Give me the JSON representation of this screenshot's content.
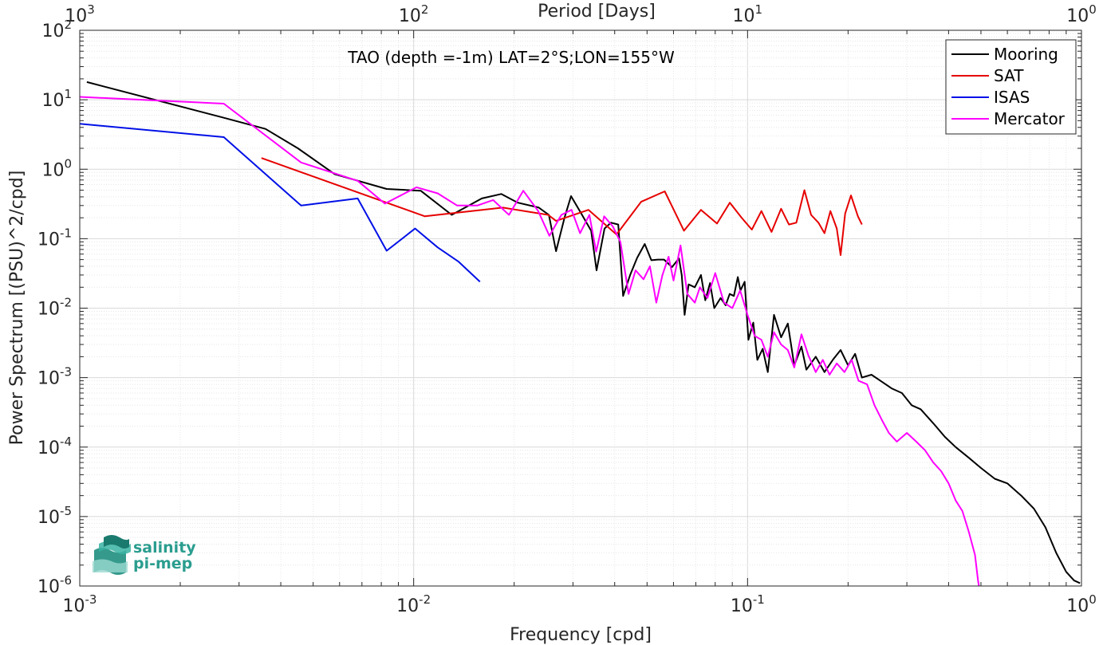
{
  "chart_data": {
    "type": "line",
    "title": "TAO (depth =-1m) LAT=2°S;LON=155°W",
    "xlabel": "Frequency [cpd]",
    "ylabel": "Power Spectrum [(PSU)^2/cpd]",
    "top_xlabel": "Period [Days]",
    "xscale": "log",
    "yscale": "log",
    "xlim": [
      0.001,
      1
    ],
    "ylim": [
      1e-06,
      100
    ],
    "grid": true,
    "legend": "top-right",
    "x_ticks": [
      {
        "base": "10",
        "exp": "-3"
      },
      {
        "base": "10",
        "exp": "-2"
      },
      {
        "base": "10",
        "exp": "-1"
      },
      {
        "base": "10",
        "exp": "0"
      }
    ],
    "top_ticks": [
      {
        "base": "10",
        "exp": "3"
      },
      {
        "base": "10",
        "exp": "2"
      },
      {
        "base": "10",
        "exp": "1"
      },
      {
        "base": "10",
        "exp": "0"
      }
    ],
    "y_ticks": [
      {
        "base": "10",
        "exp": "2"
      },
      {
        "base": "10",
        "exp": "1"
      },
      {
        "base": "10",
        "exp": "0"
      },
      {
        "base": "10",
        "exp": "-1"
      },
      {
        "base": "10",
        "exp": "-2"
      },
      {
        "base": "10",
        "exp": "-3"
      },
      {
        "base": "10",
        "exp": "-4"
      },
      {
        "base": "10",
        "exp": "-5"
      },
      {
        "base": "10",
        "exp": "-6"
      }
    ],
    "series": [
      {
        "name": "Mooring",
        "color": "#000000",
        "points": [
          [
            0.00105,
            18
          ],
          [
            0.0027,
            5.5
          ],
          [
            0.0036,
            3.8
          ],
          [
            0.0045,
            2
          ],
          [
            0.0058,
            0.85
          ],
          [
            0.0083,
            0.52
          ],
          [
            0.0105,
            0.49
          ],
          [
            0.013,
            0.22
          ],
          [
            0.016,
            0.38
          ],
          [
            0.0183,
            0.44
          ],
          [
            0.0205,
            0.33
          ],
          [
            0.0237,
            0.28
          ],
          [
            0.0254,
            0.22
          ],
          [
            0.0267,
            0.066
          ],
          [
            0.0283,
            0.2
          ],
          [
            0.0296,
            0.41
          ],
          [
            0.0316,
            0.24
          ],
          [
            0.034,
            0.13
          ],
          [
            0.0353,
            0.035
          ],
          [
            0.0373,
            0.14
          ],
          [
            0.039,
            0.17
          ],
          [
            0.041,
            0.16
          ],
          [
            0.0424,
            0.015
          ],
          [
            0.0445,
            0.03
          ],
          [
            0.0467,
            0.053
          ],
          [
            0.0492,
            0.084
          ],
          [
            0.0515,
            0.049
          ],
          [
            0.0538,
            0.05
          ],
          [
            0.0562,
            0.05
          ],
          [
            0.0594,
            0.039
          ],
          [
            0.0623,
            0.052
          ],
          [
            0.0635,
            0.03
          ],
          [
            0.0648,
            0.008
          ],
          [
            0.0666,
            0.022
          ],
          [
            0.0695,
            0.02
          ],
          [
            0.0725,
            0.03
          ],
          [
            0.0747,
            0.013
          ],
          [
            0.0772,
            0.023
          ],
          [
            0.0795,
            0.01
          ],
          [
            0.083,
            0.014
          ],
          [
            0.086,
            0.011
          ],
          [
            0.0884,
            0.016
          ],
          [
            0.091,
            0.015
          ],
          [
            0.0935,
            0.028
          ],
          [
            0.0952,
            0.018
          ],
          [
            0.098,
            0.024
          ],
          [
            0.1006,
            0.0035
          ],
          [
            0.104,
            0.0062
          ],
          [
            0.107,
            0.0018
          ],
          [
            0.111,
            0.0026
          ],
          [
            0.115,
            0.0012
          ],
          [
            0.12,
            0.008
          ],
          [
            0.126,
            0.0038
          ],
          [
            0.132,
            0.006
          ],
          [
            0.138,
            0.0015
          ],
          [
            0.145,
            0.0028
          ],
          [
            0.15,
            0.0013
          ],
          [
            0.16,
            0.002
          ],
          [
            0.17,
            0.0012
          ],
          [
            0.18,
            0.0018
          ],
          [
            0.19,
            0.0025
          ],
          [
            0.2,
            0.0015
          ],
          [
            0.21,
            0.0022
          ],
          [
            0.22,
            0.001
          ],
          [
            0.235,
            0.0011
          ],
          [
            0.25,
            0.0009
          ],
          [
            0.27,
            0.0007
          ],
          [
            0.29,
            0.0006
          ],
          [
            0.31,
            0.0004
          ],
          [
            0.33,
            0.00035
          ],
          [
            0.36,
            0.00022
          ],
          [
            0.39,
            0.00014
          ],
          [
            0.42,
            0.0001
          ],
          [
            0.46,
            7e-05
          ],
          [
            0.5,
            5e-05
          ],
          [
            0.55,
            3.5e-05
          ],
          [
            0.6,
            3e-05
          ],
          [
            0.66,
            2e-05
          ],
          [
            0.72,
            1.3e-05
          ],
          [
            0.78,
            7e-06
          ],
          [
            0.84,
            3e-06
          ],
          [
            0.9,
            1.6e-06
          ],
          [
            0.95,
            1.2e-06
          ],
          [
            0.99,
            1.1e-06
          ]
        ]
      },
      {
        "name": "SAT",
        "color": "#e60000",
        "points": [
          [
            0.0035,
            1.45
          ],
          [
            0.0108,
            0.21
          ],
          [
            0.0185,
            0.28
          ],
          [
            0.0253,
            0.22
          ],
          [
            0.0267,
            0.18
          ],
          [
            0.0334,
            0.26
          ],
          [
            0.0405,
            0.115
          ],
          [
            0.048,
            0.34
          ],
          [
            0.0565,
            0.48
          ],
          [
            0.0645,
            0.13
          ],
          [
            0.0725,
            0.26
          ],
          [
            0.081,
            0.165
          ],
          [
            0.0885,
            0.33
          ],
          [
            0.096,
            0.2
          ],
          [
            0.103,
            0.135
          ],
          [
            0.11,
            0.25
          ],
          [
            0.118,
            0.125
          ],
          [
            0.126,
            0.27
          ],
          [
            0.133,
            0.16
          ],
          [
            0.14,
            0.17
          ],
          [
            0.148,
            0.5
          ],
          [
            0.155,
            0.22
          ],
          [
            0.163,
            0.17
          ],
          [
            0.17,
            0.12
          ],
          [
            0.177,
            0.25
          ],
          [
            0.185,
            0.14
          ],
          [
            0.19,
            0.058
          ],
          [
            0.196,
            0.23
          ],
          [
            0.204,
            0.42
          ],
          [
            0.214,
            0.21
          ],
          [
            0.22,
            0.16
          ]
        ]
      },
      {
        "name": "ISAS",
        "color": "#0010e6",
        "points": [
          [
            0.001,
            4.5
          ],
          [
            0.0027,
            2.9
          ],
          [
            0.0046,
            0.3
          ],
          [
            0.0068,
            0.38
          ],
          [
            0.0083,
            0.067
          ],
          [
            0.0101,
            0.14
          ],
          [
            0.0118,
            0.075
          ],
          [
            0.0136,
            0.047
          ],
          [
            0.0158,
            0.024
          ]
        ]
      },
      {
        "name": "Mercator",
        "color": "#ff00ff",
        "points": [
          [
            0.001,
            11
          ],
          [
            0.0027,
            8.8
          ],
          [
            0.0046,
            1.25
          ],
          [
            0.0068,
            0.68
          ],
          [
            0.0082,
            0.32
          ],
          [
            0.0102,
            0.55
          ],
          [
            0.0118,
            0.45
          ],
          [
            0.0135,
            0.3
          ],
          [
            0.0155,
            0.3
          ],
          [
            0.0173,
            0.36
          ],
          [
            0.0193,
            0.22
          ],
          [
            0.0213,
            0.49
          ],
          [
            0.0236,
            0.25
          ],
          [
            0.0255,
            0.11
          ],
          [
            0.0277,
            0.22
          ],
          [
            0.0297,
            0.26
          ],
          [
            0.0315,
            0.12
          ],
          [
            0.0336,
            0.22
          ],
          [
            0.0352,
            0.065
          ],
          [
            0.0372,
            0.21
          ],
          [
            0.0395,
            0.15
          ],
          [
            0.0416,
            0.09
          ],
          [
            0.044,
            0.016
          ],
          [
            0.0462,
            0.035
          ],
          [
            0.0488,
            0.026
          ],
          [
            0.051,
            0.04
          ],
          [
            0.0533,
            0.012
          ],
          [
            0.0556,
            0.03
          ],
          [
            0.058,
            0.055
          ],
          [
            0.06,
            0.025
          ],
          [
            0.063,
            0.08
          ],
          [
            0.066,
            0.016
          ],
          [
            0.0695,
            0.012
          ],
          [
            0.072,
            0.02
          ],
          [
            0.0758,
            0.014
          ],
          [
            0.08,
            0.032
          ],
          [
            0.085,
            0.012
          ],
          [
            0.09,
            0.01
          ],
          [
            0.095,
            0.018
          ],
          [
            0.1,
            0.008
          ],
          [
            0.105,
            0.004
          ],
          [
            0.11,
            0.0035
          ],
          [
            0.115,
            0.002
          ],
          [
            0.12,
            0.0045
          ],
          [
            0.126,
            0.003
          ],
          [
            0.132,
            0.0025
          ],
          [
            0.138,
            0.0014
          ],
          [
            0.145,
            0.0042
          ],
          [
            0.152,
            0.0021
          ],
          [
            0.16,
            0.0012
          ],
          [
            0.168,
            0.0018
          ],
          [
            0.176,
            0.0011
          ],
          [
            0.185,
            0.0016
          ],
          [
            0.195,
            0.0012
          ],
          [
            0.205,
            0.0018
          ],
          [
            0.215,
            0.0009
          ],
          [
            0.228,
            0.0008
          ],
          [
            0.24,
            0.0004
          ],
          [
            0.252,
            0.00025
          ],
          [
            0.265,
            0.00016
          ],
          [
            0.28,
            0.00012
          ],
          [
            0.3,
            0.00016
          ],
          [
            0.32,
            0.00012
          ],
          [
            0.34,
            9e-05
          ],
          [
            0.36,
            6e-05
          ],
          [
            0.38,
            4.5e-05
          ],
          [
            0.4,
            3e-05
          ],
          [
            0.42,
            1.7e-05
          ],
          [
            0.44,
            1.2e-05
          ],
          [
            0.46,
            6e-06
          ],
          [
            0.48,
            2.8e-06
          ],
          [
            0.49,
            1.2e-06
          ],
          [
            0.495,
            9e-07
          ]
        ]
      }
    ]
  },
  "logo": {
    "line1": "salinity",
    "line2": "pi-mep"
  }
}
